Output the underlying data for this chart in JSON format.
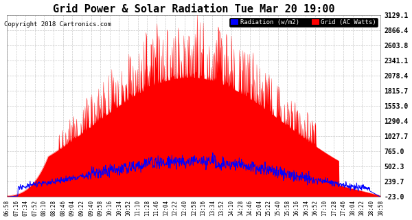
{
  "title": "Grid Power & Solar Radiation Tue Mar 20 19:00",
  "copyright": "Copyright 2018 Cartronics.com",
  "title_fontsize": 11,
  "bg_color": "#ffffff",
  "plot_bg_color": "#ffffff",
  "grid_color": "#bbbbbb",
  "ylim_min": -23.0,
  "ylim_max": 3129.1,
  "yticks": [
    -23.0,
    239.7,
    502.3,
    765.0,
    1027.7,
    1290.4,
    1553.0,
    1815.7,
    2078.4,
    2341.1,
    2603.8,
    2866.4,
    3129.1
  ],
  "radiation_color": "#0000ff",
  "grid_ac_color": "#ff0000",
  "grid_ac_fill": "#ff0000",
  "legend_radiation_label": "Radiation (w/m2)",
  "legend_grid_label": "Grid (AC Watts)",
  "legend_radiation_bg": "#0000ff",
  "legend_grid_bg": "#ff0000",
  "xtick_labels": [
    "06:58",
    "07:16",
    "07:34",
    "07:52",
    "08:10",
    "08:28",
    "08:46",
    "09:04",
    "09:22",
    "09:40",
    "09:58",
    "10:16",
    "10:34",
    "10:52",
    "11:10",
    "11:28",
    "11:46",
    "12:04",
    "12:22",
    "12:40",
    "12:58",
    "13:16",
    "13:34",
    "13:52",
    "14:10",
    "14:28",
    "14:46",
    "15:04",
    "15:22",
    "15:40",
    "15:58",
    "16:16",
    "16:34",
    "16:52",
    "17:10",
    "17:28",
    "17:46",
    "18:04",
    "18:22",
    "18:40",
    "18:58"
  ]
}
